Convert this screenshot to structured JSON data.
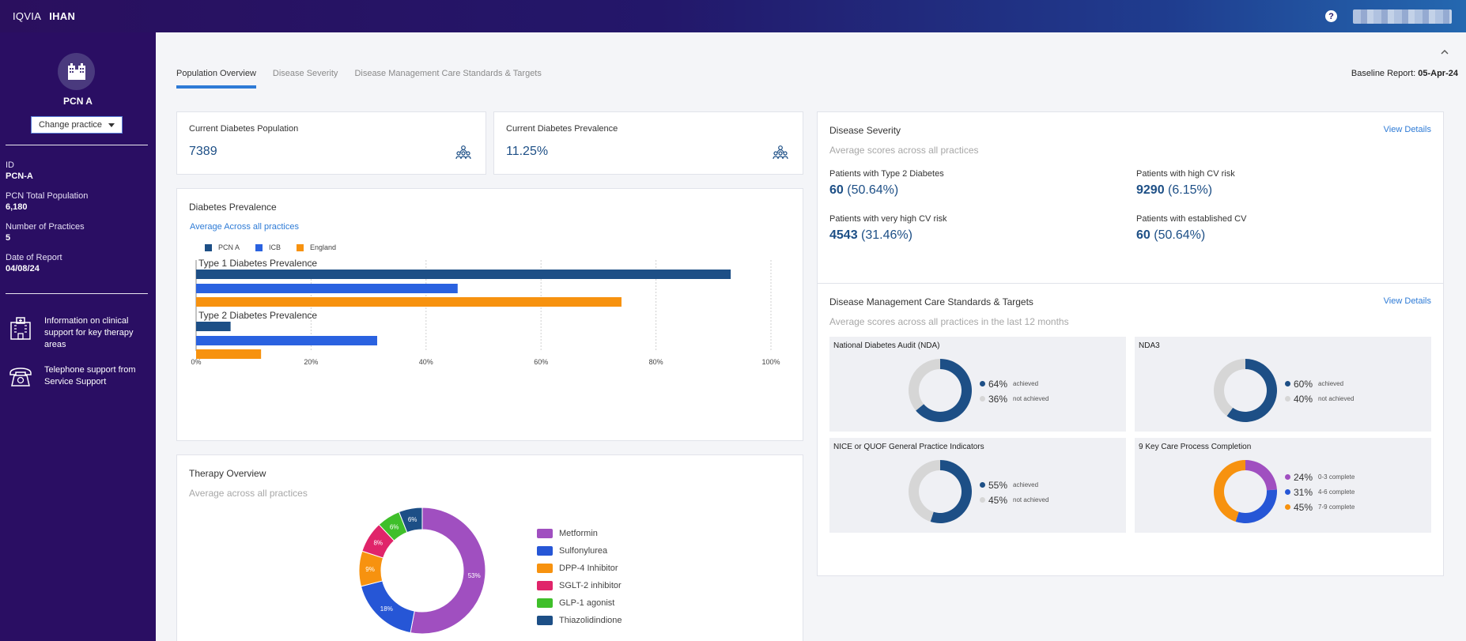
{
  "topbar": {
    "brand_left": "IQVIA",
    "brand_right": "IHAN",
    "help": "?"
  },
  "sidebar": {
    "practice_name": "PCN A",
    "change_practice_label": "Change practice",
    "meta": [
      {
        "label": "ID",
        "value": "PCN-A"
      },
      {
        "label": "PCN Total Population",
        "value": "6,180"
      },
      {
        "label": "Number of Practices",
        "value": "5"
      },
      {
        "label": "Date of Report",
        "value": "04/08/24"
      }
    ],
    "support": [
      {
        "icon": "hospital-icon",
        "text": "Information on clinical support for key therapy areas"
      },
      {
        "icon": "telephone-icon",
        "text": "Telephone support from Service Support"
      }
    ]
  },
  "tabs": [
    {
      "label": "Population Overview",
      "active": true
    },
    {
      "label": "Disease Severity",
      "active": false
    },
    {
      "label": "Disease Management Care Standards & Targets",
      "active": false
    }
  ],
  "baseline": {
    "label": "Baseline Report:",
    "value": "05-Apr-24"
  },
  "kpis": [
    {
      "title": "Current Diabetes Population",
      "value": "7389"
    },
    {
      "title": "Current Diabetes Prevalence",
      "value": "11.25%"
    }
  ],
  "prevalence": {
    "title": "Diabetes Prevalence",
    "link": "Average Across all practices",
    "colors": {
      "PCN A": "#1d4f86",
      "ICB": "#2a62e0",
      "England": "#f7920f"
    },
    "chart_data": {
      "type": "bar",
      "orientation": "horizontal",
      "categories": [
        "Type 1 Diabetes Prevalence",
        "Type 2 Diabetes Prevalence"
      ],
      "series": [
        {
          "name": "PCN A",
          "values": [
            93,
            6
          ]
        },
        {
          "name": "ICB",
          "values": [
            45.5,
            31.5
          ]
        },
        {
          "name": "England",
          "values": [
            74,
            11.3
          ]
        }
      ],
      "xlim": [
        0,
        100
      ],
      "xticks": [
        "0%",
        "20%",
        "40%",
        "60%",
        "80%",
        "100%"
      ],
      "grid": true,
      "legend": "top-left"
    }
  },
  "therapy": {
    "title": "Therapy Overview",
    "subtitle": "Average across all practices",
    "chart_data": {
      "type": "pie",
      "donut": true,
      "slices": [
        {
          "name": "Metformin",
          "value": 53,
          "label": "53%",
          "color": "#a04fc0"
        },
        {
          "name": "Sulfonylurea",
          "value": 18,
          "label": "18%",
          "color": "#2656d6"
        },
        {
          "name": "DPP-4 Inhibitor",
          "value": 9,
          "label": "9%",
          "color": "#f7920f"
        },
        {
          "name": "SGLT-2 inhibitor",
          "value": 8,
          "label": "8%",
          "color": "#e0246a"
        },
        {
          "name": "GLP-1 agonist",
          "value": 6,
          "label": "6%",
          "color": "#3fbf2a"
        },
        {
          "name": "Thiazolidindione",
          "value": 6,
          "label": "6%",
          "color": "#1d4f86"
        }
      ]
    }
  },
  "severity": {
    "title": "Disease Severity",
    "view_details": "View Details",
    "subtitle": "Average scores across all practices",
    "items": [
      {
        "label": "Patients with Type 2 Diabetes",
        "value": "60",
        "pct": "(50.64%)"
      },
      {
        "label": "Patients with high CV risk",
        "value": "9290",
        "pct": "(6.15%)"
      },
      {
        "label": "Patients with very high CV risk",
        "value": "4543",
        "pct": "(31.46%)"
      },
      {
        "label": "Patients with established CV",
        "value": "60",
        "pct": "(50.64%)"
      }
    ]
  },
  "dm": {
    "title": "Disease Management Care Standards & Targets",
    "view_details": "View Details",
    "subtitle": "Average scores across all practices in the last 12 months",
    "chart_data": [
      {
        "type": "pie",
        "title": "National Diabetes Audit (NDA)",
        "slices": [
          {
            "label": "64%",
            "value": 64,
            "desc": "achieved",
            "color": "#1d4f86"
          },
          {
            "label": "36%",
            "value": 36,
            "desc": "not achieved",
            "color": "#d6d6d6"
          }
        ]
      },
      {
        "type": "pie",
        "title": "NDA3",
        "slices": [
          {
            "label": "60%",
            "value": 60,
            "desc": "achieved",
            "color": "#1d4f86"
          },
          {
            "label": "40%",
            "value": 40,
            "desc": "not achieved",
            "color": "#d6d6d6"
          }
        ]
      },
      {
        "type": "pie",
        "title": "NICE or QUOF General Practice Indicators",
        "slices": [
          {
            "label": "55%",
            "value": 55,
            "desc": "achieved",
            "color": "#1d4f86"
          },
          {
            "label": "45%",
            "value": 45,
            "desc": "not achieved",
            "color": "#d6d6d6"
          }
        ]
      },
      {
        "type": "pie",
        "title": "9 Key Care Process Completion",
        "slices": [
          {
            "label": "24%",
            "value": 24,
            "desc": "0-3 complete",
            "color": "#a04fc0"
          },
          {
            "label": "31%",
            "value": 31,
            "desc": "4-6 complete",
            "color": "#2656d6"
          },
          {
            "label": "45%",
            "value": 45,
            "desc": "7-9 complete",
            "color": "#f7920f"
          }
        ]
      }
    ]
  }
}
